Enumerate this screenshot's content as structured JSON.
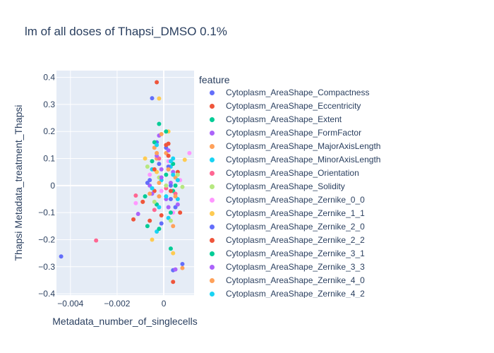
{
  "chart_data": {
    "type": "scatter",
    "title": "lm of all doses of Thapsi_DMSO 0.1%",
    "xlabel": "Metadata_number_of_singlecells",
    "ylabel": "Thapsi Metadata_treatment_Thapsi",
    "xlim": [
      -0.0046,
      0.0013
    ],
    "ylim": [
      -0.405,
      0.425
    ],
    "x_ticks": [
      -0.004,
      -0.002,
      0
    ],
    "x_tick_labels": [
      "−0.004",
      "−0.002",
      "0"
    ],
    "y_ticks": [
      -0.4,
      -0.3,
      -0.2,
      -0.1,
      0,
      0.1,
      0.2,
      0.3,
      0.4
    ],
    "y_tick_labels": [
      "−0.4",
      "−0.3",
      "−0.2",
      "−0.1",
      "0",
      "0.1",
      "0.2",
      "0.3",
      "0.4"
    ],
    "grid": true,
    "background": "#e5ecf6",
    "legend_title": "feature",
    "legend_placement": "right",
    "series": [
      {
        "name": "Cytoplasm_AreaShape_Compactness",
        "color": "#636efa",
        "points": [
          [
            -0.0044,
            -0.262
          ],
          [
            -0.0005,
            0.323
          ],
          [
            0.0004,
            -0.313
          ],
          [
            -0.0002,
            0.08
          ],
          [
            0.0003,
            -0.05
          ],
          [
            -0.0006,
            0.02
          ],
          [
            0.0001,
            0.14
          ]
        ]
      },
      {
        "name": "Cytoplasm_AreaShape_Eccentricity",
        "color": "#EF553B",
        "points": [
          [
            -0.0003,
            0.382
          ],
          [
            0.0004,
            -0.356
          ],
          [
            -0.0013,
            -0.125
          ],
          [
            0.0002,
            0.155
          ],
          [
            -0.0004,
            -0.02
          ],
          [
            0.0006,
            0.05
          ],
          [
            -0.0001,
            -0.11
          ]
        ]
      },
      {
        "name": "Cytoplasm_AreaShape_Extent",
        "color": "#00cc96",
        "points": [
          [
            -0.0002,
            0.228
          ],
          [
            0.0003,
            -0.233
          ],
          [
            -0.0007,
            -0.15
          ],
          [
            0.0001,
            0.04
          ],
          [
            -0.0005,
            0.09
          ],
          [
            0.0004,
            -0.02
          ],
          [
            -0.0003,
            -0.07
          ]
        ]
      },
      {
        "name": "Cytoplasm_AreaShape_FormFactor",
        "color": "#ab63fa",
        "points": [
          [
            -0.0002,
            0.185
          ],
          [
            0.0005,
            -0.31
          ],
          [
            -0.0011,
            -0.105
          ],
          [
            0.0003,
            0.01
          ],
          [
            -0.0006,
            0.0
          ],
          [
            0.0002,
            -0.08
          ],
          [
            -0.0001,
            0.06
          ]
        ]
      },
      {
        "name": "Cytoplasm_AreaShape_MajorAxisLength",
        "color": "#FFA15A",
        "points": [
          [
            -0.0004,
            0.14
          ],
          [
            0.0008,
            -0.305
          ],
          [
            -0.0009,
            -0.06
          ],
          [
            0.0001,
            0.12
          ],
          [
            -0.0002,
            -0.04
          ],
          [
            0.0005,
            0.03
          ],
          [
            -0.0003,
            0.1
          ]
        ]
      },
      {
        "name": "Cytoplasm_AreaShape_MinorAxisLength",
        "color": "#19d3f3",
        "points": [
          [
            0.0004,
            0.1
          ],
          [
            -0.0003,
            -0.17
          ],
          [
            0.0006,
            -0.05
          ],
          [
            -0.0001,
            0.02
          ],
          [
            0.0002,
            -0.12
          ],
          [
            -0.0005,
            0.06
          ],
          [
            0.0003,
            0.07
          ]
        ]
      },
      {
        "name": "Cytoplasm_AreaShape_Orientation",
        "color": "#FF6692",
        "points": [
          [
            -0.0029,
            -0.203
          ],
          [
            -0.0012,
            -0.037
          ],
          [
            0.0002,
            0.06
          ],
          [
            -0.0004,
            -0.09
          ],
          [
            0.0005,
            -0.03
          ],
          [
            -0.0002,
            0.1
          ],
          [
            0.0001,
            -0.01
          ]
        ]
      },
      {
        "name": "Cytoplasm_AreaShape_Solidity",
        "color": "#B6E880",
        "points": [
          [
            0.0008,
            -0.005
          ],
          [
            -0.0007,
            0.07
          ],
          [
            0.0003,
            -0.13
          ],
          [
            -0.0002,
            0.03
          ],
          [
            0.0006,
            0.04
          ],
          [
            -0.0004,
            -0.06
          ],
          [
            0.0001,
            0.0
          ]
        ]
      },
      {
        "name": "Cytoplasm_AreaShape_Zernike_0_0",
        "color": "#FF97FF",
        "points": [
          [
            0.0011,
            0.12
          ],
          [
            -0.0012,
            -0.065
          ],
          [
            0.0002,
            0.09
          ],
          [
            -0.0006,
            0.04
          ],
          [
            0.0004,
            -0.1
          ],
          [
            -0.0001,
            -0.02
          ],
          [
            0.0007,
            0.02
          ]
        ]
      },
      {
        "name": "Cytoplasm_AreaShape_Zernike_1_1",
        "color": "#FECB52",
        "points": [
          [
            -0.0002,
            0.322
          ],
          [
            -0.0005,
            -0.2
          ],
          [
            0.0004,
            -0.25
          ],
          [
            0.0009,
            0.095
          ],
          [
            -0.0008,
            0.1
          ],
          [
            0.0002,
            0.2
          ],
          [
            -0.0003,
            0.05
          ]
        ]
      },
      {
        "name": "Cytoplasm_AreaShape_Zernike_2_0",
        "color": "#636efa",
        "points": [
          [
            0.0008,
            -0.29
          ],
          [
            -0.0003,
            0.16
          ],
          [
            0.0005,
            -0.08
          ],
          [
            -0.0007,
            0.01
          ],
          [
            0.0002,
            0.07
          ],
          [
            -0.0001,
            -0.14
          ],
          [
            0.0003,
            0.0
          ]
        ]
      },
      {
        "name": "Cytoplasm_AreaShape_Zernike_2_2",
        "color": "#EF553B",
        "points": [
          [
            0.0007,
            -0.1
          ],
          [
            -0.0009,
            -0.06
          ],
          [
            0.0001,
            0.15
          ],
          [
            -0.0004,
            0.06
          ],
          [
            0.0003,
            -0.02
          ],
          [
            -0.0006,
            -0.13
          ],
          [
            0.0002,
            0.11
          ]
        ]
      },
      {
        "name": "Cytoplasm_AreaShape_Zernike_3_1",
        "color": "#00cc96",
        "points": [
          [
            -0.0004,
            0.16
          ],
          [
            0.0003,
            -0.1
          ],
          [
            -0.0008,
            -0.04
          ],
          [
            0.0001,
            0.2
          ],
          [
            0.0005,
            0.0
          ],
          [
            -0.0002,
            -0.16
          ],
          [
            0.0004,
            0.08
          ]
        ]
      },
      {
        "name": "Cytoplasm_AreaShape_Zernike_3_3",
        "color": "#ab63fa",
        "points": [
          [
            0.0002,
            0.13
          ],
          [
            -0.0005,
            -0.03
          ],
          [
            0.0004,
            0.05
          ],
          [
            -0.0003,
            0.11
          ],
          [
            0.0006,
            -0.07
          ],
          [
            -0.0001,
            0.03
          ],
          [
            0.0001,
            -0.05
          ]
        ]
      },
      {
        "name": "Cytoplasm_AreaShape_Zernike_4_0",
        "color": "#FFA15A",
        "points": [
          [
            -0.0001,
            0.19
          ],
          [
            0.0004,
            -0.15
          ],
          [
            -0.0006,
            -0.03
          ],
          [
            0.0002,
            0.06
          ],
          [
            -0.0003,
            0.12
          ],
          [
            0.0005,
            -0.04
          ],
          [
            -0.0002,
            0.01
          ]
        ]
      },
      {
        "name": "Cytoplasm_AreaShape_Zernike_4_2",
        "color": "#19d3f3",
        "points": [
          [
            0.0003,
            0.09
          ],
          [
            -0.0002,
            -0.08
          ],
          [
            0.0006,
            0.02
          ],
          [
            -0.0005,
            -0.01
          ],
          [
            0.0001,
            -0.04
          ],
          [
            -0.0003,
            0.15
          ],
          [
            0.0004,
            0.04
          ]
        ]
      }
    ]
  }
}
